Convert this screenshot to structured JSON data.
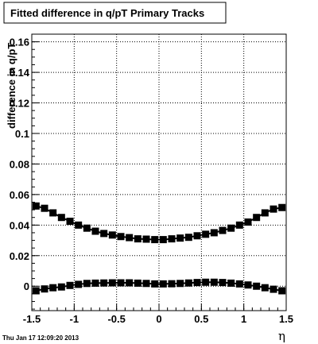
{
  "chart_data": {
    "type": "scatter",
    "title": "Fitted difference in q/pT  Primary Tracks",
    "xlabel": "η",
    "ylabel": "difference in q/pT",
    "xlim": [
      -1.5,
      1.5
    ],
    "ylim": [
      -0.016,
      0.165
    ],
    "x_ticks": [
      "-1.5",
      "-1",
      "-0.5",
      "0",
      "0.5",
      "1",
      "1.5"
    ],
    "y_ticks": [
      "0",
      "0.02",
      "0.04",
      "0.06",
      "0.08",
      "0.1",
      "0.12",
      "0.14",
      "0.16"
    ],
    "grid": true,
    "marker": "square",
    "series": [
      {
        "x": [
          -1.45,
          -1.35,
          -1.25,
          -1.15,
          -1.05,
          -0.95,
          -0.85,
          -0.75,
          -0.65,
          -0.55,
          -0.45,
          -0.35,
          -0.25,
          -0.15,
          -0.05,
          0.05,
          0.15,
          0.25,
          0.35,
          0.45,
          0.55,
          0.65,
          0.75,
          0.85,
          0.95,
          1.05,
          1.15,
          1.25,
          1.35,
          1.45
        ],
        "values": [
          0.0525,
          0.051,
          0.048,
          0.045,
          0.0425,
          0.04,
          0.038,
          0.036,
          0.0345,
          0.0335,
          0.0325,
          0.0318,
          0.031,
          0.0308,
          0.0305,
          0.0305,
          0.031,
          0.0315,
          0.032,
          0.033,
          0.034,
          0.035,
          0.0365,
          0.038,
          0.04,
          0.042,
          0.045,
          0.048,
          0.0505,
          0.0515
        ]
      },
      {
        "x": [
          -1.45,
          -1.35,
          -1.25,
          -1.15,
          -1.05,
          -0.95,
          -0.85,
          -0.75,
          -0.65,
          -0.55,
          -0.45,
          -0.35,
          -0.25,
          -0.15,
          -0.05,
          0.05,
          0.15,
          0.25,
          0.35,
          0.45,
          0.55,
          0.65,
          0.75,
          0.85,
          0.95,
          1.05,
          1.15,
          1.25,
          1.35,
          1.45
        ],
        "values": [
          -0.003,
          -0.0018,
          -0.001,
          -0.0005,
          0.0005,
          0.0012,
          0.0018,
          0.002,
          0.0021,
          0.0022,
          0.0022,
          0.0022,
          0.002,
          0.0018,
          0.0015,
          0.0015,
          0.0016,
          0.0018,
          0.0021,
          0.0024,
          0.0026,
          0.0026,
          0.0024,
          0.002,
          0.0015,
          0.0008,
          0.0,
          -0.001,
          -0.002,
          -0.003
        ]
      }
    ]
  },
  "footer": {
    "timestamp": "Thu Jan 17 12:09:20 2013"
  }
}
